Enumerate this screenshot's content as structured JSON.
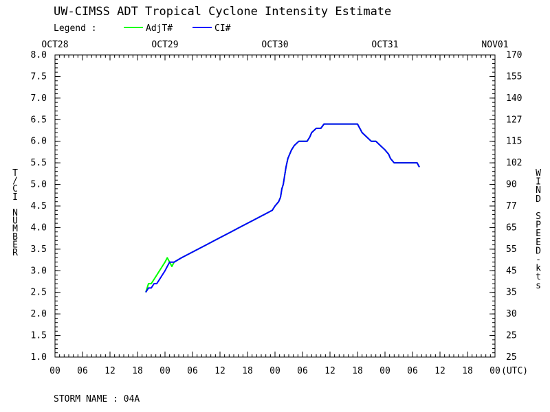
{
  "chart_data": {
    "type": "line",
    "title": "UW-CIMSS ADT Tropical Cyclone Intensity Estimate",
    "legend_label": "Legend :",
    "legend_placement": "top-left",
    "ylabel_left": "T/CI NUMBER",
    "ylabel_right": "WIND SPEED-kts",
    "xlabel": "(UTC)",
    "storm_name_label": "STORM NAME : 04A",
    "ylim": [
      1.0,
      8.0
    ],
    "yticks_left": [
      "1.0",
      "1.5",
      "2.0",
      "2.5",
      "3.0",
      "3.5",
      "4.0",
      "4.5",
      "5.0",
      "5.5",
      "6.0",
      "6.5",
      "7.0",
      "7.5",
      "8.0"
    ],
    "yticks_right": [
      "25",
      "25",
      "30",
      "35",
      "45",
      "55",
      "65",
      "77",
      "90",
      "102",
      "115",
      "127",
      "140",
      "155",
      "170"
    ],
    "xlim": [
      0,
      96
    ],
    "x_units": "hours after OCT28 00 UTC",
    "date_labels": [
      {
        "x": 0,
        "label": "OCT28"
      },
      {
        "x": 24,
        "label": "OCT29"
      },
      {
        "x": 48,
        "label": "OCT30"
      },
      {
        "x": 72,
        "label": "OCT31"
      },
      {
        "x": 96,
        "label": "NOV01"
      }
    ],
    "hour_ticks": [
      {
        "x": 0,
        "label": "00"
      },
      {
        "x": 6,
        "label": "06"
      },
      {
        "x": 12,
        "label": "12"
      },
      {
        "x": 18,
        "label": "18"
      },
      {
        "x": 24,
        "label": "00"
      },
      {
        "x": 30,
        "label": "06"
      },
      {
        "x": 36,
        "label": "12"
      },
      {
        "x": 42,
        "label": "18"
      },
      {
        "x": 48,
        "label": "00"
      },
      {
        "x": 54,
        "label": "06"
      },
      {
        "x": 60,
        "label": "12"
      },
      {
        "x": 66,
        "label": "18"
      },
      {
        "x": 72,
        "label": "00"
      },
      {
        "x": 78,
        "label": "06"
      },
      {
        "x": 84,
        "label": "12"
      },
      {
        "x": 90,
        "label": "18"
      },
      {
        "x": 96,
        "label": "00"
      }
    ],
    "series": [
      {
        "name": "AdjT#",
        "color": "#00ff00",
        "points": [
          [
            19.8,
            2.5
          ],
          [
            20.4,
            2.7
          ],
          [
            21.0,
            2.7
          ],
          [
            21.6,
            2.8
          ],
          [
            22.2,
            2.9
          ],
          [
            22.8,
            3.0
          ],
          [
            23.4,
            3.1
          ],
          [
            24.0,
            3.2
          ],
          [
            24.5,
            3.3
          ],
          [
            25.0,
            3.2
          ],
          [
            25.5,
            3.1
          ],
          [
            26.0,
            3.2
          ],
          [
            27.6,
            3.3
          ],
          [
            29.4,
            3.4
          ],
          [
            31.2,
            3.5
          ],
          [
            33.0,
            3.6
          ],
          [
            34.8,
            3.7
          ],
          [
            36.6,
            3.8
          ],
          [
            38.4,
            3.9
          ],
          [
            40.2,
            4.0
          ],
          [
            42.0,
            4.1
          ],
          [
            43.8,
            4.2
          ],
          [
            45.6,
            4.3
          ],
          [
            47.4,
            4.4
          ],
          [
            48.0,
            4.5
          ],
          [
            48.8,
            4.6
          ],
          [
            49.2,
            4.7
          ],
          [
            49.5,
            4.9
          ],
          [
            49.8,
            5.0
          ],
          [
            50.1,
            5.2
          ],
          [
            50.4,
            5.4
          ],
          [
            50.8,
            5.6
          ],
          [
            51.2,
            5.7
          ],
          [
            51.6,
            5.8
          ],
          [
            52.2,
            5.9
          ],
          [
            53.2,
            6.0
          ],
          [
            54.0,
            6.0
          ],
          [
            55.0,
            6.0
          ],
          [
            55.6,
            6.1
          ],
          [
            56.0,
            6.2
          ],
          [
            57.0,
            6.3
          ],
          [
            58.0,
            6.3
          ],
          [
            58.7,
            6.4
          ],
          [
            63.0,
            6.4
          ],
          [
            65.0,
            6.4
          ],
          [
            66.0,
            6.4
          ],
          [
            67.0,
            6.2
          ],
          [
            68.0,
            6.1
          ],
          [
            69.0,
            6.0
          ],
          [
            70.0,
            6.0
          ],
          [
            71.0,
            5.9
          ],
          [
            72.0,
            5.8
          ],
          [
            72.8,
            5.7
          ],
          [
            73.2,
            5.6
          ],
          [
            74.0,
            5.5
          ],
          [
            76.0,
            5.5
          ],
          [
            78.0,
            5.5
          ],
          [
            79.0,
            5.5
          ],
          [
            79.5,
            5.4
          ]
        ]
      },
      {
        "name": "CI#",
        "color": "#0000ff",
        "points": [
          [
            19.8,
            2.5
          ],
          [
            20.4,
            2.6
          ],
          [
            21.0,
            2.6
          ],
          [
            21.6,
            2.7
          ],
          [
            22.2,
            2.7
          ],
          [
            22.8,
            2.8
          ],
          [
            23.4,
            2.9
          ],
          [
            24.0,
            3.0
          ],
          [
            24.5,
            3.1
          ],
          [
            25.0,
            3.2
          ],
          [
            25.5,
            3.2
          ],
          [
            26.0,
            3.2
          ],
          [
            27.6,
            3.3
          ],
          [
            29.4,
            3.4
          ],
          [
            31.2,
            3.5
          ],
          [
            33.0,
            3.6
          ],
          [
            34.8,
            3.7
          ],
          [
            36.6,
            3.8
          ],
          [
            38.4,
            3.9
          ],
          [
            40.2,
            4.0
          ],
          [
            42.0,
            4.1
          ],
          [
            43.8,
            4.2
          ],
          [
            45.6,
            4.3
          ],
          [
            47.4,
            4.4
          ],
          [
            48.0,
            4.5
          ],
          [
            48.8,
            4.6
          ],
          [
            49.2,
            4.7
          ],
          [
            49.5,
            4.9
          ],
          [
            49.8,
            5.0
          ],
          [
            50.1,
            5.2
          ],
          [
            50.4,
            5.4
          ],
          [
            50.8,
            5.6
          ],
          [
            51.2,
            5.7
          ],
          [
            51.6,
            5.8
          ],
          [
            52.2,
            5.9
          ],
          [
            53.2,
            6.0
          ],
          [
            54.0,
            6.0
          ],
          [
            55.0,
            6.0
          ],
          [
            55.6,
            6.1
          ],
          [
            56.0,
            6.2
          ],
          [
            57.0,
            6.3
          ],
          [
            58.0,
            6.3
          ],
          [
            58.7,
            6.4
          ],
          [
            63.0,
            6.4
          ],
          [
            65.0,
            6.4
          ],
          [
            66.0,
            6.4
          ],
          [
            67.0,
            6.2
          ],
          [
            68.0,
            6.1
          ],
          [
            69.0,
            6.0
          ],
          [
            70.0,
            6.0
          ],
          [
            71.0,
            5.9
          ],
          [
            72.0,
            5.8
          ],
          [
            72.8,
            5.7
          ],
          [
            73.2,
            5.6
          ],
          [
            74.0,
            5.5
          ],
          [
            76.0,
            5.5
          ],
          [
            78.0,
            5.5
          ],
          [
            79.0,
            5.5
          ],
          [
            79.5,
            5.4
          ]
        ]
      }
    ]
  }
}
